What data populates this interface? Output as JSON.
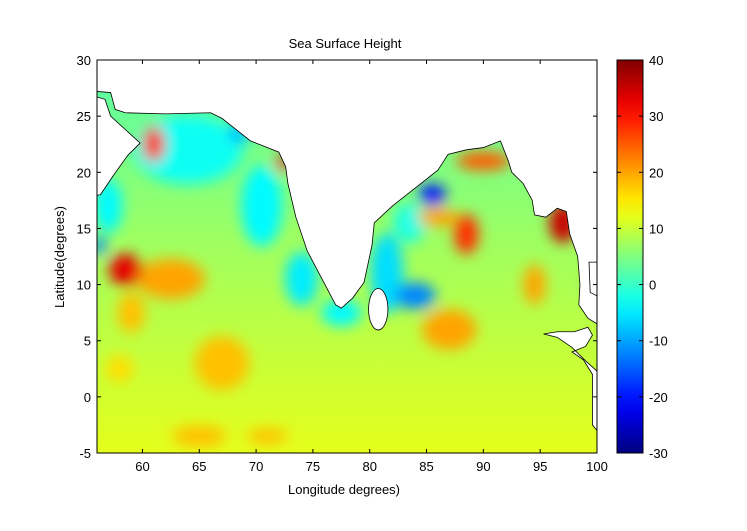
{
  "chart_data": {
    "type": "heatmap",
    "title": "Sea Surface Height",
    "xlabel": "Longitude degrees)",
    "ylabel": "Latitude(degrees)",
    "xlim": [
      56,
      100
    ],
    "ylim": [
      -5,
      30
    ],
    "xticks": [
      60,
      65,
      70,
      75,
      80,
      85,
      90,
      95,
      100
    ],
    "yticks": [
      -5,
      0,
      5,
      10,
      15,
      20,
      25,
      30
    ],
    "colorbar": {
      "range": [
        -30,
        40
      ],
      "ticks": [
        -30,
        -20,
        -10,
        0,
        10,
        20,
        30,
        40
      ],
      "colormap": "jet",
      "placement": "right"
    },
    "grid": false,
    "background_value_north": 2,
    "background_value_south": 12,
    "features": [
      {
        "lon": 61,
        "lat": 22.5,
        "value": 30,
        "rlon": 0.8,
        "rlat": 1.3
      },
      {
        "lon": 72.3,
        "lat": 20.8,
        "value": 32,
        "rlon": 0.5,
        "rlat": 0.6
      },
      {
        "lon": 58.5,
        "lat": 11.3,
        "value": 33,
        "rlon": 1.2,
        "rlat": 1.2
      },
      {
        "lon": 62.5,
        "lat": 10.5,
        "value": 20,
        "rlon": 2.5,
        "rlat": 1.5
      },
      {
        "lon": 59,
        "lat": 7.5,
        "value": 18,
        "rlon": 1,
        "rlat": 1.5
      },
      {
        "lon": 67,
        "lat": 3,
        "value": 18,
        "rlon": 2,
        "rlat": 2
      },
      {
        "lon": 58,
        "lat": 2.5,
        "value": 16,
        "rlon": 1,
        "rlat": 1
      },
      {
        "lon": 85.5,
        "lat": 18,
        "value": -20,
        "rlon": 1,
        "rlat": 0.8
      },
      {
        "lon": 88.5,
        "lat": 14.5,
        "value": 28,
        "rlon": 0.9,
        "rlat": 1.5
      },
      {
        "lon": 87,
        "lat": 6,
        "value": 20,
        "rlon": 2,
        "rlat": 1.5
      },
      {
        "lon": 84,
        "lat": 9,
        "value": -12,
        "rlon": 1.5,
        "rlat": 1
      },
      {
        "lon": 97,
        "lat": 15.5,
        "value": 35,
        "rlon": 1,
        "rlat": 1.5
      },
      {
        "lon": 90,
        "lat": 21,
        "value": 25,
        "rlon": 2,
        "rlat": 0.7
      },
      {
        "lon": 94.5,
        "lat": 10,
        "value": 20,
        "rlon": 0.8,
        "rlat": 1.5
      },
      {
        "lon": 86,
        "lat": 16,
        "value": 20,
        "rlon": 1.5,
        "rlat": 0.7
      },
      {
        "lon": 56.2,
        "lat": 13.5,
        "value": -12,
        "rlon": 0.5,
        "rlat": 0.7
      },
      {
        "lon": 99.4,
        "lat": 10,
        "value": -18,
        "rlon": 0.2,
        "rlat": 0.4
      },
      {
        "lon": 68.5,
        "lat": 23.5,
        "value": -8,
        "rlon": 0.8,
        "rlat": 0.8
      },
      {
        "lon": 65,
        "lat": -3.5,
        "value": 18,
        "rlon": 2,
        "rlat": 0.8
      },
      {
        "lon": 71,
        "lat": -3.5,
        "value": 18,
        "rlon": 1.5,
        "rlat": 0.6
      },
      {
        "lon": 64,
        "lat": 22,
        "value": -3,
        "rlon": 4,
        "rlat": 2.5
      },
      {
        "lon": 70.5,
        "lat": 17,
        "value": -4,
        "rlon": 1.5,
        "rlat": 3
      },
      {
        "lon": 74,
        "lat": 10.5,
        "value": -5,
        "rlon": 1.2,
        "rlat": 2
      },
      {
        "lon": 77.5,
        "lat": 7.5,
        "value": -4,
        "rlon": 1.5,
        "rlat": 1
      },
      {
        "lon": 81.5,
        "lat": 11,
        "value": -6,
        "rlon": 1.2,
        "rlat": 3
      },
      {
        "lon": 83.5,
        "lat": 15.5,
        "value": -2,
        "rlon": 1.2,
        "rlat": 1.5
      },
      {
        "lon": 57,
        "lat": 17,
        "value": -4,
        "rlon": 1,
        "rlat": 2
      }
    ]
  }
}
